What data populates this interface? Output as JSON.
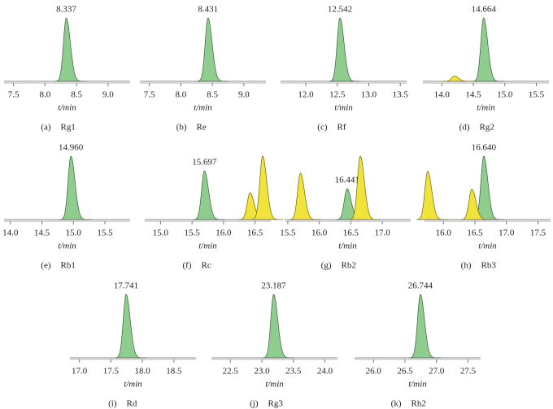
{
  "chart_data": [
    {
      "type": "line",
      "caption_label": "(a)",
      "caption": "Rg1",
      "xlabel": "t/min",
      "xlim": [
        7.35,
        9.35
      ],
      "xticks": [
        7.5,
        {
          "value": 8,
          "label": "8.0"
        },
        8.5,
        {
          "value": 9,
          "label": "9.0"
        }
      ],
      "series": [
        {
          "color": "#8fcd8f",
          "x": [
            8.337
          ],
          "values": [
            100
          ]
        }
      ]
    },
    {
      "type": "line",
      "caption_label": "(b)",
      "caption": "Re",
      "xlabel": "t/min",
      "xlim": [
        7.35,
        9.35
      ],
      "xticks": [
        7.5,
        {
          "value": 8,
          "label": "8.0"
        },
        8.5,
        {
          "value": 9,
          "label": "9.0"
        }
      ],
      "series": [
        {
          "color": "#8fcd8f",
          "x": [
            8.431
          ],
          "values": [
            100
          ]
        }
      ]
    },
    {
      "type": "line",
      "caption_label": "(c)",
      "caption": "Rf",
      "xlabel": "t/min",
      "xlim": [
        11.6,
        13.6
      ],
      "xticks": [
        {
          "value": 12,
          "label": "12.0"
        },
        12.5,
        {
          "value": 13,
          "label": "13.0"
        },
        13.5
      ],
      "series": [
        {
          "color": "#8fcd8f",
          "x": [
            12.542
          ],
          "values": [
            100
          ]
        }
      ]
    },
    {
      "type": "line",
      "caption_label": "(d)",
      "caption": "Rg2",
      "xlabel": "t/min",
      "xlim": [
        13.7,
        15.7
      ],
      "xticks": [
        {
          "value": 14,
          "label": "14.0"
        },
        14.5,
        {
          "value": 15,
          "label": "15.0"
        },
        15.5
      ],
      "series": [
        {
          "color": "#8fcd8f",
          "x": [
            14.664
          ],
          "values": [
            100
          ]
        },
        {
          "color": "#f1e23c",
          "x": [
            14.2
          ],
          "values": [
            8
          ]
        }
      ]
    },
    {
      "type": "line",
      "caption_label": "(e)",
      "caption": "Rb1",
      "xlabel": "t/min",
      "xlim": [
        13.9,
        15.9
      ],
      "xticks": [
        {
          "value": 14,
          "label": "14.0"
        },
        14.5,
        {
          "value": 15,
          "label": "15.0"
        },
        15.5
      ],
      "series": [
        {
          "color": "#8fcd8f",
          "x": [
            14.96
          ],
          "x_labels": [
            "14.960"
          ],
          "values": [
            100
          ]
        }
      ]
    },
    {
      "type": "line",
      "caption_label": "(f)",
      "caption": "Rc",
      "xlabel": "t/min",
      "xlim": [
        14.75,
        16.75
      ],
      "xticks": [
        {
          "value": 15,
          "label": "15.0"
        },
        15.5,
        {
          "value": 16,
          "label": "16.0"
        },
        16.5
      ],
      "series": [
        {
          "color": "#8fcd8f",
          "x": [
            15.697
          ],
          "values": [
            100
          ]
        },
        {
          "color": "#f1e23c",
          "x": [
            16.42,
            16.62
          ],
          "values": [
            55,
            130
          ]
        }
      ]
    },
    {
      "type": "line",
      "caption_label": "(g)",
      "caption": "Rb2",
      "xlabel": "t/min",
      "xlim": [
        15.45,
        17.45
      ],
      "xticks": [
        15.5,
        {
          "value": 16,
          "label": "16.0"
        },
        16.5,
        {
          "value": 17,
          "label": "17.0"
        }
      ],
      "series": [
        {
          "color": "#8fcd8f",
          "x": [
            16.441
          ],
          "values": [
            100
          ]
        },
        {
          "color": "#f1e23c",
          "x": [
            15.7,
            16.65
          ],
          "values": [
            150,
            205
          ]
        }
      ]
    },
    {
      "type": "line",
      "caption_label": "(h)",
      "caption": "Rb3",
      "xlabel": "t/min",
      "xlim": [
        15.7,
        17.7
      ],
      "xticks": [
        {
          "value": 16,
          "label": "16.0"
        },
        16.5,
        {
          "value": 17,
          "label": "17.0"
        },
        17.5
      ],
      "series": [
        {
          "color": "#8fcd8f",
          "x": [
            16.64
          ],
          "x_labels": [
            "16.640"
          ],
          "values": [
            100
          ]
        },
        {
          "color": "#f1e23c",
          "x": [
            15.75,
            16.45
          ],
          "values": [
            76,
            48
          ]
        }
      ]
    },
    {
      "type": "line",
      "caption_label": "(i)",
      "caption": "Rd",
      "xlabel": "t/min",
      "xlim": [
        16.85,
        18.85
      ],
      "xticks": [
        {
          "value": 17,
          "label": "17.0"
        },
        17.5,
        {
          "value": 18,
          "label": "18.0"
        },
        18.5
      ],
      "series": [
        {
          "color": "#8fcd8f",
          "x": [
            17.741
          ],
          "values": [
            100
          ]
        }
      ]
    },
    {
      "type": "line",
      "caption_label": "(j)",
      "caption": "Rg3",
      "xlabel": "t/min",
      "xlim": [
        22.2,
        24.2
      ],
      "xticks": [
        22.5,
        {
          "value": 23,
          "label": "23.0"
        },
        23.5,
        {
          "value": 24,
          "label": "24.0"
        }
      ],
      "series": [
        {
          "color": "#8fcd8f",
          "x": [
            23.187
          ],
          "values": [
            100
          ]
        }
      ]
    },
    {
      "type": "line",
      "caption_label": "(k)",
      "caption": "Rh2",
      "xlabel": "t/min",
      "xlim": [
        25.7,
        27.7
      ],
      "xticks": [
        {
          "value": 26,
          "label": "26.0"
        },
        26.5,
        {
          "value": 27,
          "label": "27.0"
        },
        27.5
      ],
      "series": [
        {
          "color": "#8fcd8f",
          "x": [
            26.744
          ],
          "values": [
            100
          ]
        }
      ]
    }
  ]
}
